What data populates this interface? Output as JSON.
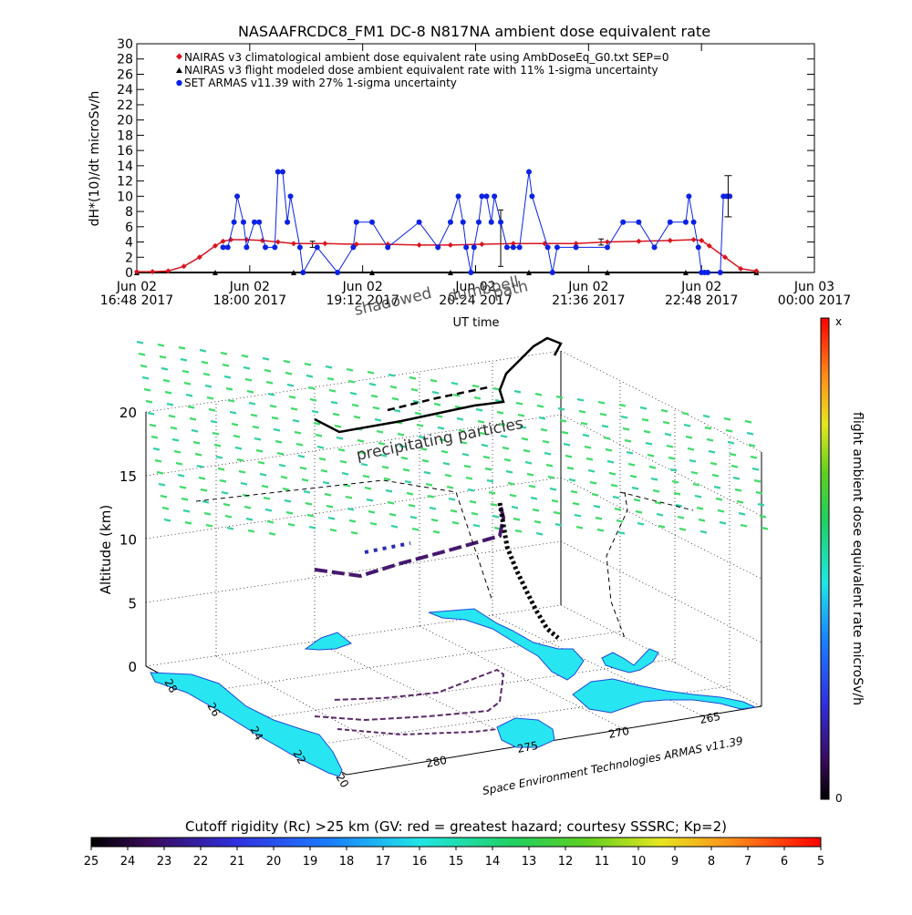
{
  "colors": {
    "nairas_clim": "#d9141e",
    "nairas_flight": "#000000",
    "armas": "#0a22e6",
    "land": "#27e6f2",
    "flight_track": "#000000",
    "precip": "#36d69a"
  },
  "chart_data": [
    {
      "type": "line",
      "title": "NASAAFRCDC8_FM1 DC-8   N817NA ambient dose equivalent rate",
      "xlabel": "UT time",
      "ylabel": "dH*(10)/dt microSv/h",
      "ylim": [
        0,
        30
      ],
      "yticks": [
        0,
        2,
        4,
        6,
        8,
        10,
        12,
        14,
        16,
        18,
        20,
        22,
        24,
        26,
        28,
        30
      ],
      "xlim": [
        0,
        432
      ],
      "xticks": [
        {
          "x": 0,
          "l1": "Jun 02",
          "l2": "16:48 2017"
        },
        {
          "x": 72,
          "l1": "Jun 02",
          "l2": "18:00 2017"
        },
        {
          "x": 144,
          "l1": "Jun 02",
          "l2": "19:12 2017"
        },
        {
          "x": 216,
          "l1": "Jun 02",
          "l2": "20:24 2017"
        },
        {
          "x": 288,
          "l1": "Jun 02",
          "l2": "21:36 2017"
        },
        {
          "x": 360,
          "l1": "Jun 02",
          "l2": "22:48 2017"
        },
        {
          "x": 432,
          "l1": "Jun 03",
          "l2": "00:00 2017"
        }
      ],
      "legend_position": "top-left",
      "legend": [
        {
          "marker": "diamond",
          "color": "#d9141e",
          "text": "NAIRAS v3 climatological ambient dose equivalent rate using AmbDoseEq_G0.txt SEP=0"
        },
        {
          "marker": "triangle",
          "color": "#000000",
          "text": "NAIRAS v3 flight modeled dose ambient equivalent rate with 11% 1-sigma uncertainty"
        },
        {
          "marker": "dot",
          "color": "#0a22e6",
          "text": "SET ARMAS v11.39 with 27% 1-sigma uncertainty"
        }
      ],
      "annotations": [
        "dumbbell",
        "shadowed",
        "path"
      ],
      "series": [
        {
          "name": "NAIRAS v3 climatological ambient dose equivalent rate using AmbDoseEq_G0.txt SEP=0",
          "x": [
            0,
            10,
            20,
            30,
            40,
            50,
            55,
            60,
            70,
            80,
            90,
            100,
            120,
            140,
            160,
            180,
            200,
            220,
            240,
            260,
            280,
            300,
            320,
            340,
            355,
            360,
            365,
            375,
            385,
            395
          ],
          "y": [
            0.1,
            0.1,
            0.2,
            0.8,
            2.0,
            3.5,
            4.1,
            4.3,
            4.3,
            4.2,
            4.0,
            3.8,
            3.8,
            3.7,
            3.7,
            3.6,
            3.6,
            3.7,
            3.8,
            3.8,
            3.8,
            4.0,
            4.1,
            4.2,
            4.3,
            4.2,
            3.5,
            2.0,
            0.5,
            0.2
          ]
        },
        {
          "name": "NAIRAS v3 flight modeled dose ambient equivalent rate with 11% 1-sigma uncertainty",
          "x": [
            0,
            50,
            100,
            150,
            200,
            250,
            300,
            350,
            395
          ],
          "y": [
            0,
            0,
            0,
            0,
            0,
            0,
            0,
            0,
            0
          ],
          "errorbars": [
            {
              "x": 112,
              "y": 3.7,
              "err": 0.4
            },
            {
              "x": 232,
              "y": 4.5,
              "err": 3.7
            },
            {
              "x": 296,
              "y": 4.0,
              "err": 0.4
            }
          ]
        },
        {
          "name": "SET ARMAS v11.39 with 27% 1-sigma uncertainty",
          "x": [
            55,
            58,
            62,
            64,
            68,
            70,
            75,
            78,
            82,
            88,
            90,
            93,
            96,
            98,
            104,
            106,
            115,
            128,
            138,
            140,
            150,
            160,
            180,
            192,
            200,
            205,
            208,
            210,
            213,
            215,
            218,
            220,
            223,
            226,
            228,
            232,
            236,
            240,
            244,
            250,
            252,
            262,
            265,
            268,
            280,
            300,
            310,
            320,
            330,
            340,
            350,
            352,
            355,
            358,
            360,
            362,
            364,
            372,
            374,
            376,
            378
          ],
          "y": [
            3.3,
            3.3,
            6.6,
            10,
            6.6,
            3.3,
            6.6,
            6.6,
            3.3,
            3.3,
            13.2,
            13.2,
            6.6,
            10,
            3.3,
            0,
            3.3,
            0,
            3.3,
            6.6,
            6.6,
            3.3,
            6.6,
            3.3,
            6.6,
            10,
            6.6,
            3.3,
            0,
            3.3,
            6.6,
            10,
            10,
            6.6,
            10,
            6.6,
            3.3,
            3.3,
            3.3,
            13.2,
            10,
            3.3,
            0,
            3.3,
            3.3,
            3.3,
            6.6,
            6.6,
            3.3,
            6.6,
            6.6,
            10,
            6.6,
            3.3,
            0,
            0,
            0,
            0,
            10,
            10,
            10
          ],
          "errorbars": [
            {
              "x": 377,
              "y": 10,
              "err": 2.7
            }
          ]
        }
      ]
    },
    {
      "type": "scatter",
      "title": "",
      "zlabel": "Altitude (km)",
      "zlim": [
        0,
        20
      ],
      "zticks": [
        0,
        5,
        10,
        15,
        20
      ],
      "lat_ticks": [
        20,
        22,
        24,
        26,
        28
      ],
      "lon_ticks": [
        265,
        270,
        275,
        280
      ],
      "annotations": [
        "precipitating particles"
      ],
      "credit": "Space Environment Technologies ARMAS v11.39"
    }
  ],
  "colorbars": {
    "right": {
      "label": "flight ambient dose equivalent rate microSv/h",
      "top_label": "x",
      "bottom_label": "0"
    },
    "bottom": {
      "label": "Cutoff rigidity (Rc) >25 km (GV: red = greatest hazard; courtesy SSSRC; Kp=2)",
      "ticks": [
        "25",
        "24",
        "23",
        "22",
        "21",
        "20",
        "19",
        "18",
        "17",
        "16",
        "15",
        "14",
        "13",
        "12",
        "11",
        "10",
        "9",
        "8",
        "7",
        "6",
        "5"
      ]
    }
  }
}
